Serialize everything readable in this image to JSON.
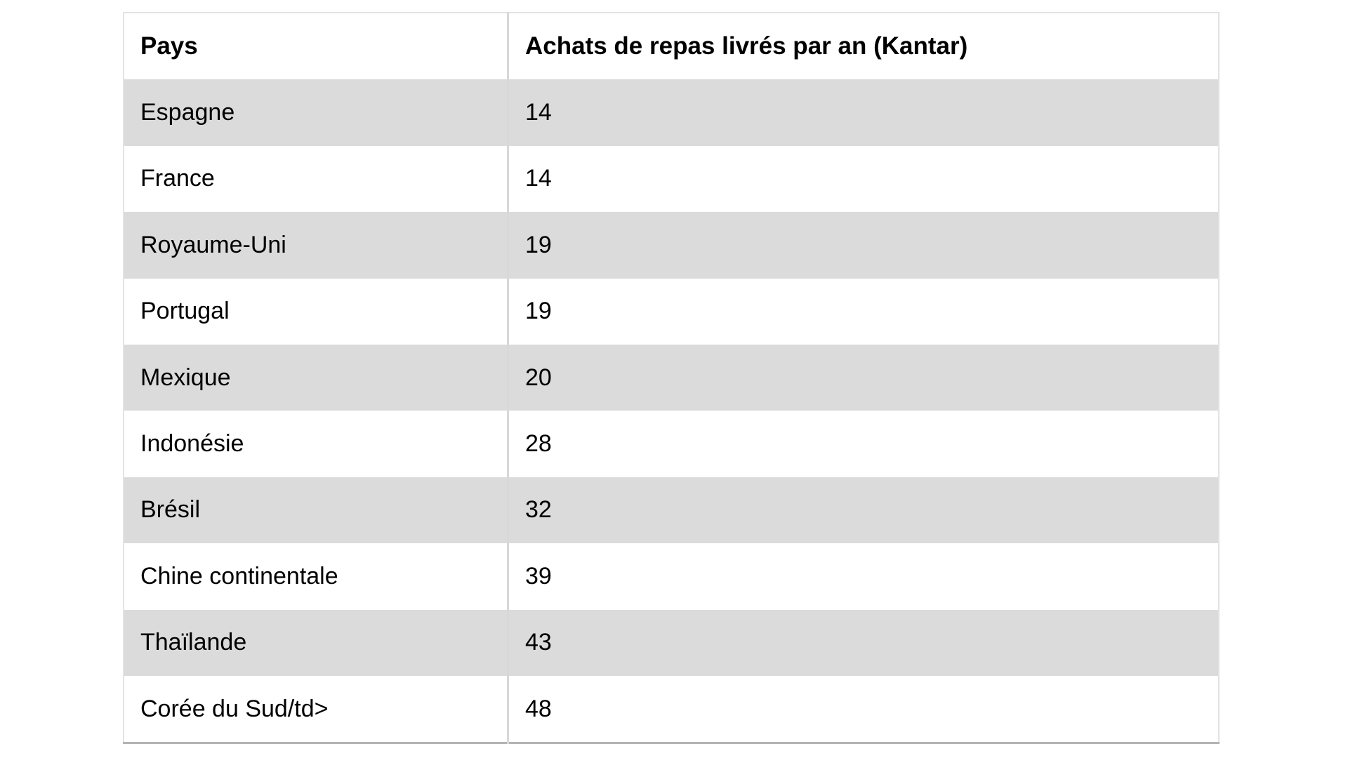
{
  "table": {
    "headers": [
      {
        "label": "Pays"
      },
      {
        "label": "Achats de repas livrés par an (Kantar)"
      }
    ],
    "rows": [
      {
        "country": "Espagne",
        "value": "14"
      },
      {
        "country": "France",
        "value": "14"
      },
      {
        "country": "Royaume-Uni",
        "value": "19"
      },
      {
        "country": "Portugal",
        "value": "19"
      },
      {
        "country": "Mexique",
        "value": "20"
      },
      {
        "country": "Indonésie",
        "value": "28"
      },
      {
        "country": "Brésil",
        "value": "32"
      },
      {
        "country": "Chine continentale",
        "value": "39"
      },
      {
        "country": "Thaïlande",
        "value": "43"
      },
      {
        "country": "Corée du Sud/td>",
        "value": "48"
      }
    ]
  },
  "colors": {
    "stripe_gray": "#dbdbdb",
    "row_white": "#ffffff",
    "outer_border": "#e3e3e3",
    "bottom_border": "#b3b3b3",
    "column_divider": "#d8d8d8",
    "text": "#000000"
  }
}
